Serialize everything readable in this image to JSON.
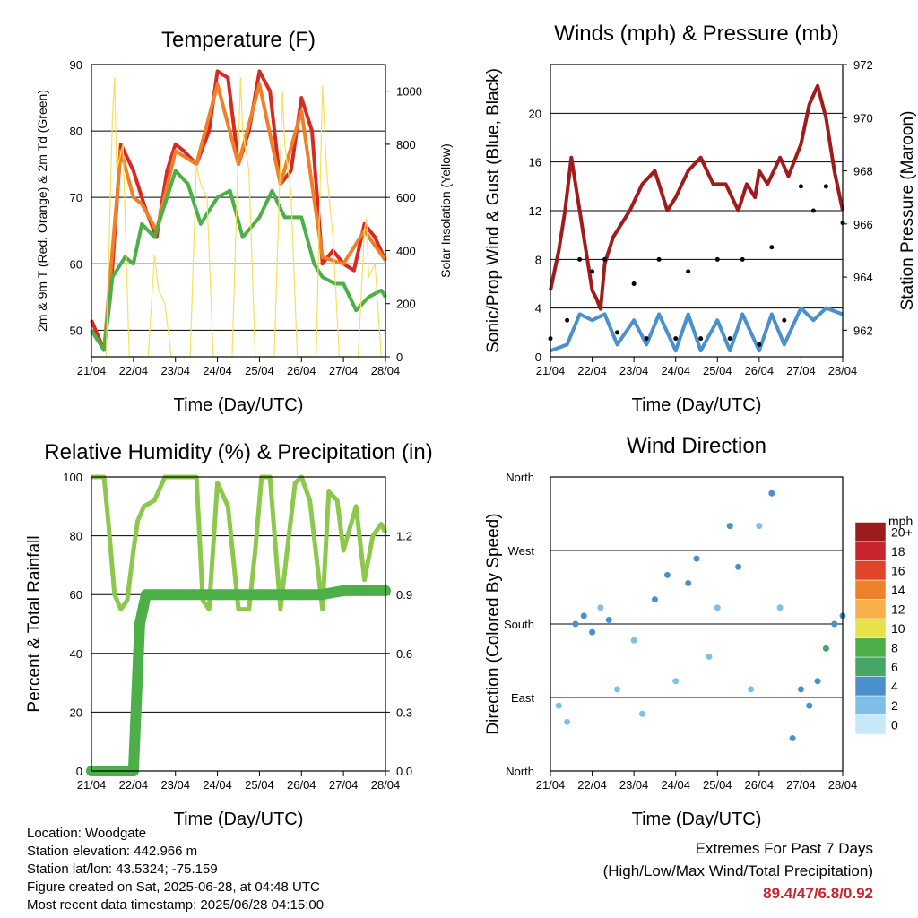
{
  "chart_data": [
    {
      "type": "line",
      "title": "Temperature (F)",
      "xlabel": "Time (Day/UTC)",
      "ylabel": "2m & 9m T (Red, Orange) & 2m Td (Green)",
      "ylabel_right": "Solar Insolation (Yellow)",
      "x_ticks": [
        "21/04",
        "22/04",
        "23/04",
        "24/04",
        "25/04",
        "26/04",
        "27/04",
        "28/04"
      ],
      "ylim": [
        46,
        90
      ],
      "y_ticks": [
        50,
        60,
        70,
        80,
        90
      ],
      "y2lim": [
        0,
        1100
      ],
      "y2_ticks": [
        0,
        200,
        400,
        600,
        800,
        1000
      ],
      "grid": true,
      "series": [
        {
          "color": "#d62a22",
          "axis": "left",
          "x": [
            0,
            0.1,
            0.3,
            0.45,
            0.7,
            1.0,
            1.3,
            1.55,
            1.8,
            2.0,
            2.2,
            2.5,
            2.8,
            3.0,
            3.25,
            3.5,
            3.75,
            4.0,
            4.25,
            4.5,
            4.75,
            5.0,
            5.25,
            5.5,
            5.75,
            6.0,
            6.25,
            6.5,
            6.75,
            7.0
          ],
          "y": [
            51.5,
            50,
            47,
            55,
            78,
            74,
            68,
            64,
            74,
            78,
            77,
            75,
            80,
            89,
            88,
            75,
            80,
            89,
            86,
            72,
            74,
            85,
            80,
            60,
            62,
            60,
            59,
            66,
            64,
            60.5
          ]
        },
        {
          "color": "#f07f2a",
          "axis": "left",
          "x": [
            0,
            0.3,
            0.7,
            1.0,
            1.2,
            1.55,
            2.0,
            2.5,
            3.0,
            3.5,
            4.0,
            4.5,
            5.0,
            5.5,
            6.0,
            6.5,
            7.0
          ],
          "y": [
            50,
            47,
            77,
            70,
            69,
            65,
            77,
            75,
            87,
            75,
            87,
            72,
            83,
            61,
            60,
            65,
            60.5
          ]
        },
        {
          "color": "#4caf48",
          "axis": "left",
          "x": [
            0,
            0.3,
            0.5,
            0.8,
            1.0,
            1.2,
            1.5,
            1.8,
            2.0,
            2.3,
            2.6,
            3.0,
            3.3,
            3.6,
            4.0,
            4.3,
            4.6,
            5.0,
            5.3,
            5.5,
            5.8,
            6.0,
            6.3,
            6.6,
            6.9,
            7.0
          ],
          "y": [
            50,
            47,
            58,
            61,
            60,
            66,
            64,
            70,
            74,
            72,
            66,
            70,
            71,
            64,
            67,
            71,
            67,
            67,
            60,
            58,
            57,
            57,
            53,
            55,
            56,
            55
          ]
        },
        {
          "color": "#f5e05c",
          "axis": "right",
          "x": [
            0.35,
            0.5,
            0.55,
            0.6,
            0.75,
            0.9,
            1.35,
            1.5,
            1.6,
            1.75,
            1.9,
            2.35,
            2.5,
            2.6,
            2.75,
            2.9,
            3.35,
            3.5,
            3.55,
            3.6,
            3.75,
            3.9,
            4.35,
            4.5,
            4.55,
            4.6,
            4.75,
            4.9,
            5.35,
            5.5,
            5.6,
            5.75,
            5.9,
            6.35,
            6.5,
            6.55,
            6.6,
            6.75,
            6.9
          ],
          "y": [
            0,
            900,
            1050,
            700,
            800,
            0,
            0,
            380,
            250,
            200,
            0,
            0,
            720,
            650,
            600,
            0,
            0,
            800,
            1050,
            850,
            700,
            0,
            0,
            750,
            1000,
            800,
            620,
            0,
            0,
            1020,
            700,
            450,
            0,
            0,
            480,
            520,
            300,
            350,
            0
          ]
        }
      ]
    },
    {
      "type": "line",
      "title": "Winds (mph) & Pressure (mb)",
      "xlabel": "Time (Day/UTC)",
      "ylabel": "Sonic/Prop Wind & Gust (Blue, Black)",
      "ylabel_right": "Station Pressure (Maroon)",
      "x_ticks": [
        "21/04",
        "22/04",
        "23/04",
        "24/04",
        "25/04",
        "26/04",
        "27/04",
        "28/04"
      ],
      "ylim": [
        0,
        24
      ],
      "y_ticks": [
        0,
        4,
        8,
        12,
        16,
        20
      ],
      "y2lim": [
        961,
        972
      ],
      "y2_ticks": [
        962,
        964,
        966,
        968,
        970,
        972
      ],
      "grid": true,
      "series": [
        {
          "color": "#a01c1c",
          "axis": "right",
          "x": [
            0,
            0.2,
            0.35,
            0.5,
            0.7,
            0.9,
            1.0,
            1.1,
            1.2,
            1.3,
            1.5,
            1.7,
            1.9,
            2.2,
            2.5,
            2.8,
            3.0,
            3.3,
            3.6,
            3.9,
            4.2,
            4.5,
            4.7,
            4.9,
            5.0,
            5.2,
            5.5,
            5.7,
            6.0,
            6.2,
            6.4,
            6.6,
            6.8,
            7.0
          ],
          "y": [
            963.5,
            965,
            966.5,
            968.5,
            966.5,
            964.5,
            963.5,
            963.2,
            962.8,
            964.5,
            965.5,
            966,
            966.5,
            967.5,
            968,
            966.5,
            967,
            968,
            968.5,
            967.5,
            967.5,
            966.5,
            967.5,
            967,
            968,
            967.5,
            968.5,
            967.8,
            969,
            970.5,
            971.2,
            970,
            968,
            966.5
          ]
        },
        {
          "color": "#4a90cc",
          "axis": "left",
          "x": [
            0,
            0.4,
            0.7,
            1.0,
            1.3,
            1.6,
            2.0,
            2.3,
            2.6,
            3.0,
            3.3,
            3.6,
            4.0,
            4.3,
            4.6,
            5.0,
            5.3,
            5.6,
            6.0,
            6.3,
            6.6,
            7.0
          ],
          "y": [
            0.5,
            1,
            3.5,
            3,
            3.5,
            1,
            3,
            1,
            3.5,
            0.5,
            3.5,
            0.5,
            3,
            0.5,
            3.5,
            0.5,
            3.5,
            1,
            4,
            3,
            4,
            3.5
          ]
        },
        {
          "color": "#000000",
          "axis": "left",
          "marker": "dot",
          "x": [
            0,
            0.4,
            0.7,
            1.0,
            1.3,
            1.6,
            2.0,
            2.3,
            2.6,
            3.0,
            3.3,
            3.6,
            4.0,
            4.3,
            4.6,
            5.0,
            5.3,
            5.6,
            6.0,
            6.3,
            6.6,
            7.0
          ],
          "y": [
            1.5,
            3,
            8,
            7,
            8,
            2,
            6,
            1.5,
            8,
            1.5,
            7,
            1.5,
            8,
            1.5,
            8,
            1,
            9,
            3,
            14,
            12,
            14,
            11
          ]
        }
      ]
    },
    {
      "type": "line",
      "title": "Relative Humidity (%) & Precipitation (in)",
      "xlabel": "Time (Day/UTC)",
      "ylabel": "Percent & Total Rainfall",
      "x_ticks": [
        "21/04",
        "22/04",
        "23/04",
        "24/04",
        "25/04",
        "26/04",
        "27/04",
        "28/04"
      ],
      "ylim": [
        0,
        100
      ],
      "y_ticks": [
        0,
        20,
        40,
        60,
        80,
        100
      ],
      "y2lim": [
        0,
        1.5
      ],
      "y2_ticks": [
        "0.0",
        "0.3",
        "0.6",
        "0.9",
        "1.2"
      ],
      "grid": true,
      "series": [
        {
          "color": "#8cc84b",
          "axis": "left",
          "x": [
            0,
            0.3,
            0.4,
            0.55,
            0.7,
            0.85,
            1.0,
            1.1,
            1.25,
            1.5,
            1.75,
            2.0,
            2.5,
            2.65,
            2.8,
            3.0,
            3.25,
            3.5,
            3.75,
            3.9,
            4.05,
            4.25,
            4.5,
            4.7,
            4.85,
            5.0,
            5.2,
            5.5,
            5.65,
            5.85,
            6.0,
            6.3,
            6.5,
            6.7,
            6.9,
            7.0
          ],
          "y": [
            100,
            100,
            85,
            60,
            55,
            58,
            75,
            85,
            90,
            92,
            100,
            100,
            100,
            58,
            55,
            98,
            90,
            55,
            55,
            75,
            100,
            100,
            55,
            80,
            98,
            100,
            92,
            55,
            95,
            92,
            75,
            90,
            65,
            80,
            84,
            81
          ]
        },
        {
          "color": "#4caf48",
          "axis": "right",
          "marker": "dot",
          "x": [
            0,
            0.5,
            1.0,
            1.1,
            1.15,
            1.2,
            1.3,
            1.5,
            2.0,
            3.0,
            4.0,
            5.0,
            5.5,
            6.0,
            6.5,
            7.0
          ],
          "y": [
            0,
            0,
            0,
            0.5,
            0.75,
            0.8,
            0.9,
            0.9,
            0.9,
            0.9,
            0.9,
            0.9,
            0.9,
            0.92,
            0.92,
            0.92
          ]
        }
      ]
    },
    {
      "type": "scatter",
      "title": "Wind Direction",
      "xlabel": "Time (Day/UTC)",
      "ylabel": "Direction (Colored By Speed)",
      "x_ticks": [
        "21/04",
        "22/04",
        "23/04",
        "24/04",
        "25/04",
        "26/04",
        "27/04",
        "28/04"
      ],
      "y_ticks": [
        "North",
        "East",
        "South",
        "West",
        "North"
      ],
      "ylim": [
        0,
        360
      ],
      "grid": true,
      "colorbar": {
        "title": "mph",
        "labels": [
          "0",
          "2",
          "4",
          "6",
          "8",
          "10",
          "12",
          "14",
          "16",
          "18",
          "20+"
        ],
        "colors": [
          "#c6e9fa",
          "#7fbfe6",
          "#4a90cc",
          "#45a66a",
          "#4caf48",
          "#e7e24c",
          "#f5b04a",
          "#f07f2a",
          "#e0452a",
          "#c8242c",
          "#9b1c1c"
        ]
      },
      "points": [
        {
          "x": 0.2,
          "y": 80,
          "speed": 1
        },
        {
          "x": 0.4,
          "y": 60,
          "speed": 2
        },
        {
          "x": 0.6,
          "y": 180,
          "speed": 3
        },
        {
          "x": 0.8,
          "y": 190,
          "speed": 4
        },
        {
          "x": 1.0,
          "y": 170,
          "speed": 3
        },
        {
          "x": 1.2,
          "y": 200,
          "speed": 2
        },
        {
          "x": 1.4,
          "y": 185,
          "speed": 4
        },
        {
          "x": 1.6,
          "y": 100,
          "speed": 1
        },
        {
          "x": 2.0,
          "y": 160,
          "speed": 1
        },
        {
          "x": 2.2,
          "y": 70,
          "speed": 1
        },
        {
          "x": 2.5,
          "y": 210,
          "speed": 3
        },
        {
          "x": 2.8,
          "y": 240,
          "speed": 4
        },
        {
          "x": 3.0,
          "y": 110,
          "speed": 1
        },
        {
          "x": 3.3,
          "y": 230,
          "speed": 3
        },
        {
          "x": 3.5,
          "y": 260,
          "speed": 4
        },
        {
          "x": 3.8,
          "y": 140,
          "speed": 2
        },
        {
          "x": 4.0,
          "y": 200,
          "speed": 2
        },
        {
          "x": 4.3,
          "y": 300,
          "speed": 4
        },
        {
          "x": 4.5,
          "y": 250,
          "speed": 3
        },
        {
          "x": 4.8,
          "y": 100,
          "speed": 1
        },
        {
          "x": 5.0,
          "y": 300,
          "speed": 2
        },
        {
          "x": 5.3,
          "y": 340,
          "speed": 4
        },
        {
          "x": 5.5,
          "y": 200,
          "speed": 2
        },
        {
          "x": 5.8,
          "y": 40,
          "speed": 3
        },
        {
          "x": 6.0,
          "y": 100,
          "speed": 4
        },
        {
          "x": 6.2,
          "y": 80,
          "speed": 4
        },
        {
          "x": 6.4,
          "y": 110,
          "speed": 3
        },
        {
          "x": 6.6,
          "y": 150,
          "speed": 5
        },
        {
          "x": 6.8,
          "y": 180,
          "speed": 4
        },
        {
          "x": 7.0,
          "y": 190,
          "speed": 4
        }
      ]
    }
  ],
  "footer": {
    "location": "Location: Woodgate",
    "elevation": "Station elevation: 442.966 m",
    "latlon": "Station lat/lon: 43.5324; -75.159",
    "created": "Figure created on Sat, 2025-06-28, at 04:48 UTC",
    "recent": "Most recent data timestamp: 2025/06/28 04:15:00"
  },
  "extremes": {
    "title": "Extremes For Past 7 Days",
    "subtitle": "(High/Low/Max Wind/Total Precipitation)",
    "values": "89.4/47/6.8/0.92"
  }
}
